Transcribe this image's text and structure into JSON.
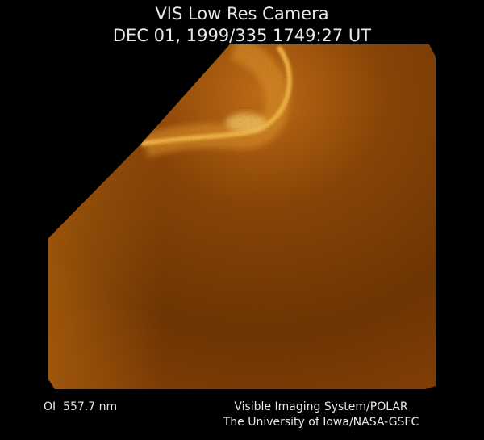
{
  "header": {
    "title": "VIS Low Res Camera",
    "timestamp": "DEC 01, 1999/335 1749:27 UT"
  },
  "footer": {
    "filter": "OI  557.7 nm",
    "instrument": "Visible Imaging System/POLAR",
    "credit": "The University of Iowa/NASA-GSFC"
  }
}
